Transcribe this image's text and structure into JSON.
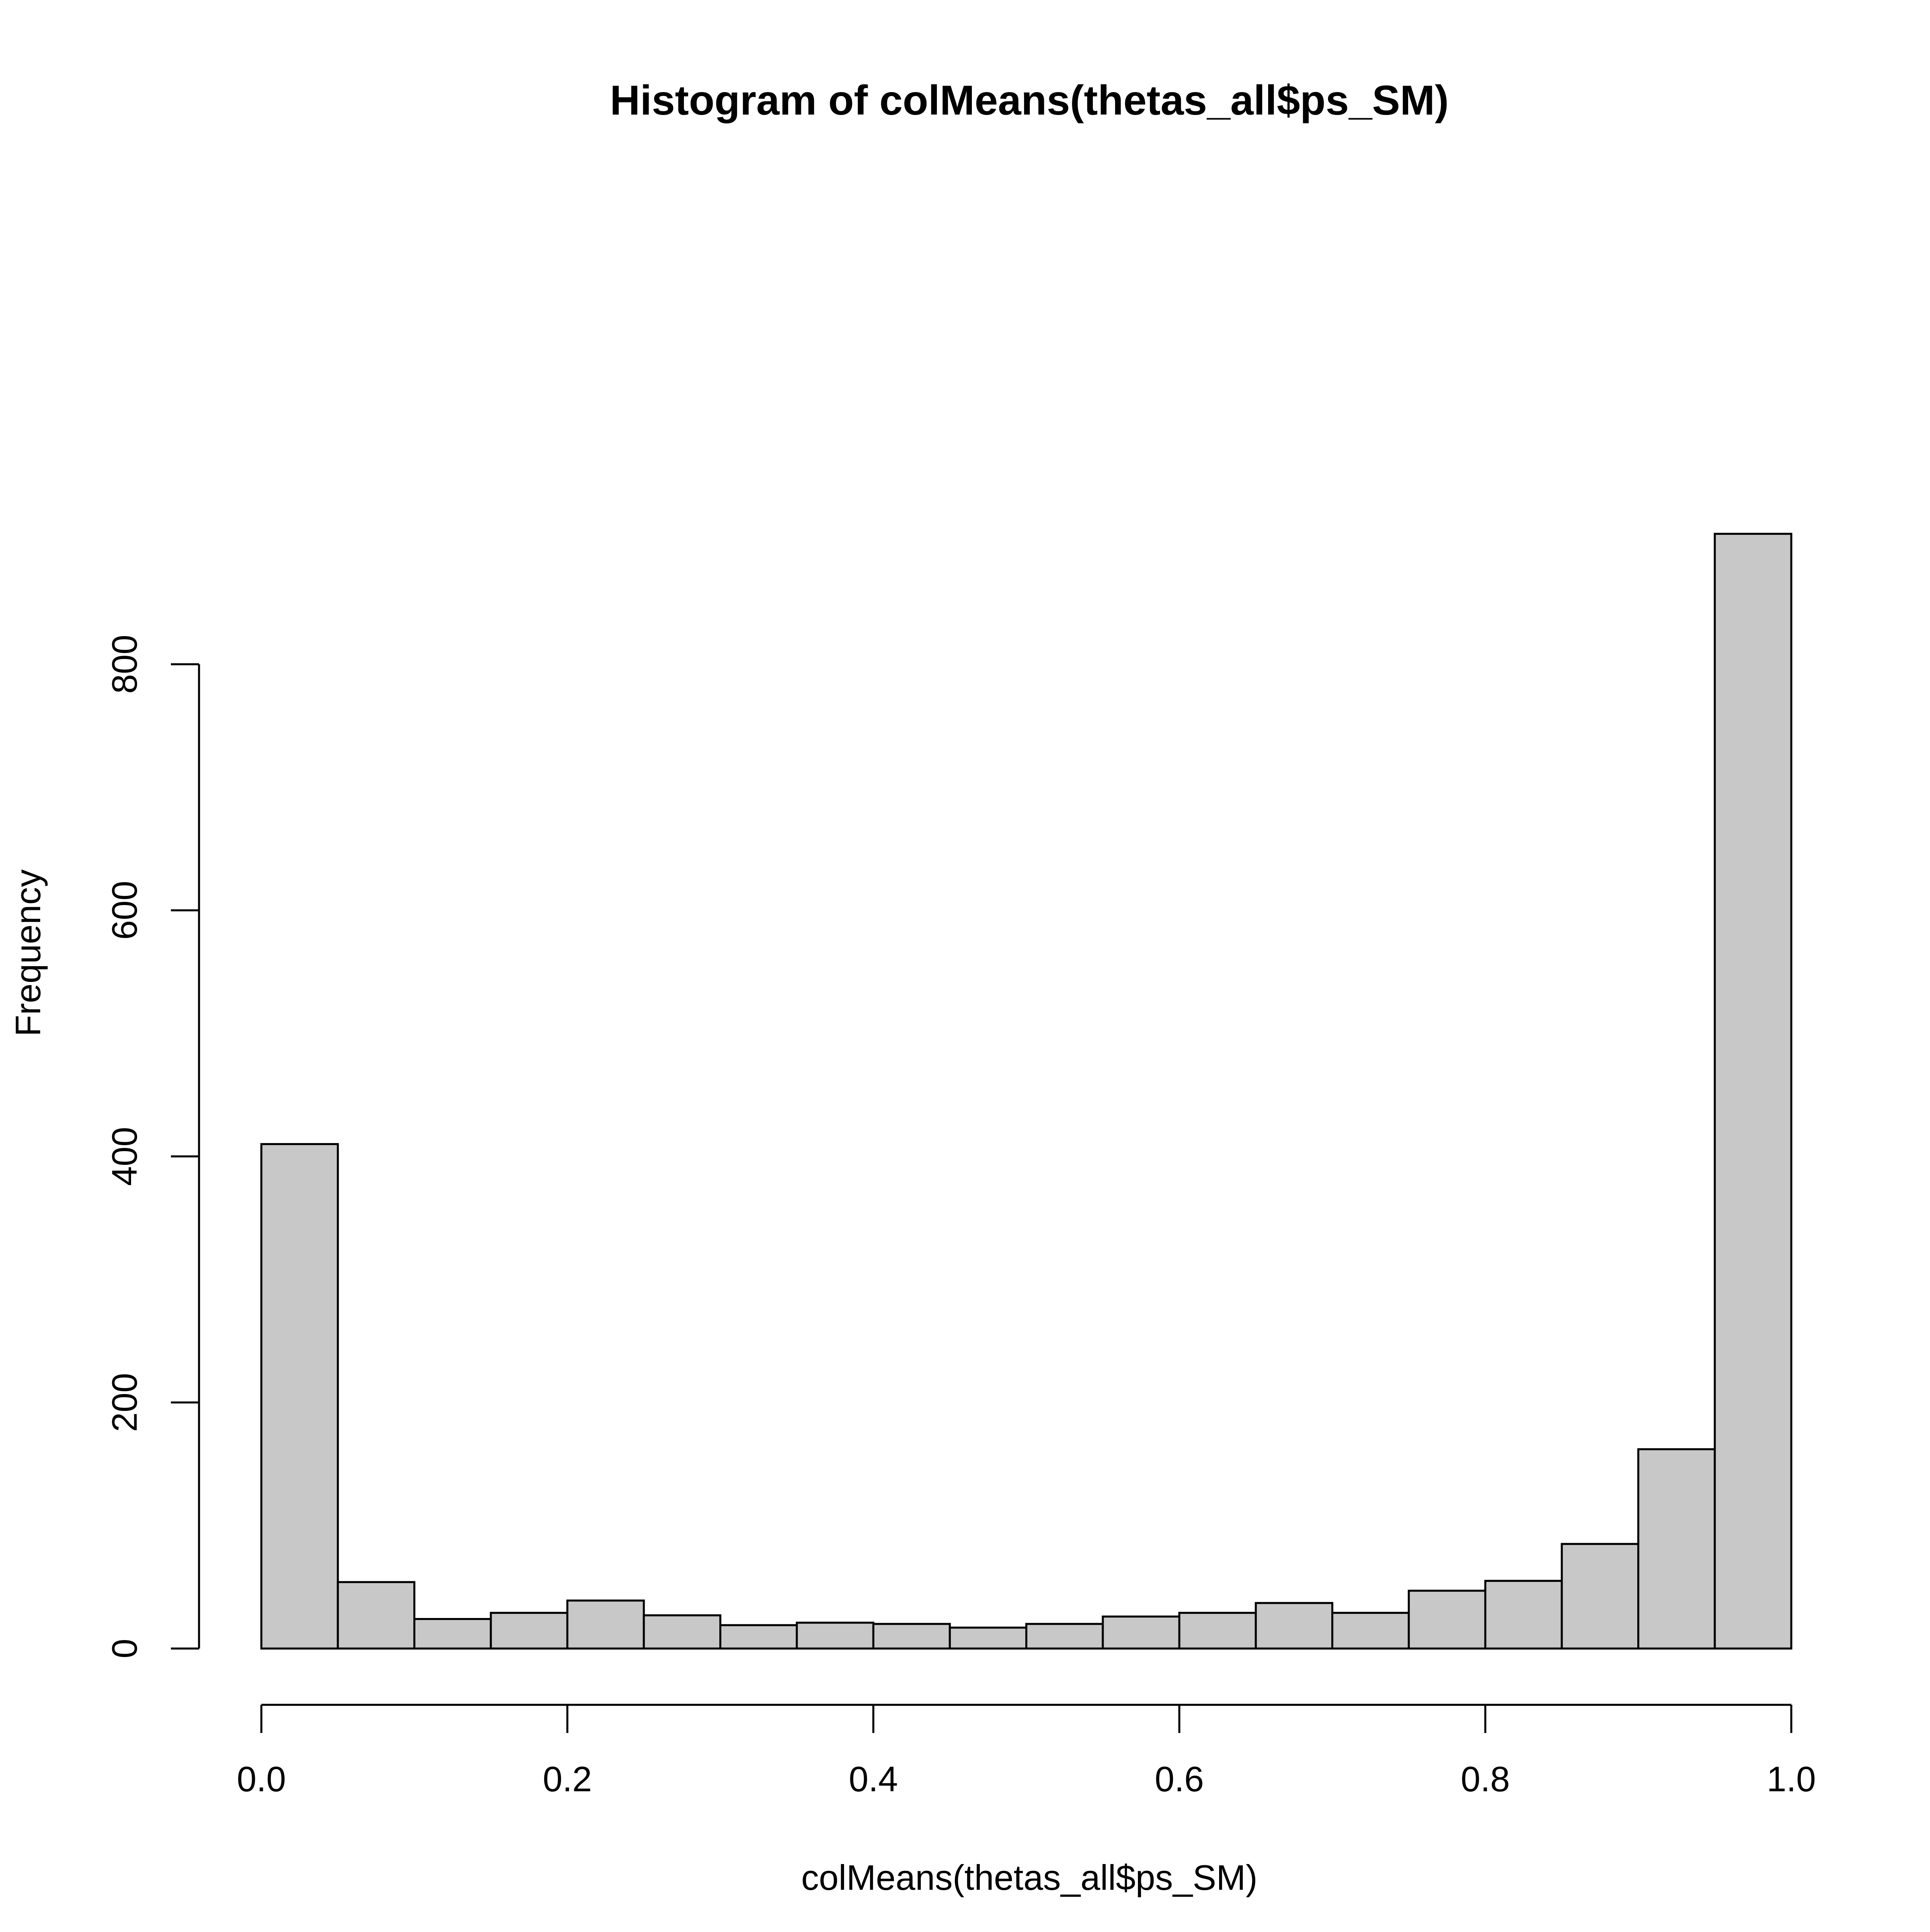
{
  "chart_data": {
    "type": "bar",
    "title": "Histogram of colMeans(thetas_all$ps_SM)",
    "xlabel": "colMeans(thetas_all$ps_SM)",
    "ylabel": "Frequency",
    "xlim": [
      0.0,
      1.0
    ],
    "ylim": [
      0,
      900
    ],
    "bin_width": 0.05,
    "bin_starts": [
      0.0,
      0.05,
      0.1,
      0.15,
      0.2,
      0.25,
      0.3,
      0.35,
      0.4,
      0.45,
      0.5,
      0.55,
      0.6,
      0.65,
      0.7,
      0.75,
      0.8,
      0.85,
      0.9,
      0.95
    ],
    "values": [
      410,
      54,
      24,
      29,
      39,
      27,
      19,
      21,
      20,
      17,
      20,
      26,
      29,
      37,
      29,
      47,
      55,
      85,
      162,
      906
    ],
    "x_ticks": [
      0.0,
      0.2,
      0.4,
      0.6,
      0.8,
      1.0
    ],
    "x_tick_labels": [
      "0.0",
      "0.2",
      "0.4",
      "0.6",
      "0.8",
      "1.0"
    ],
    "y_ticks": [
      0,
      200,
      400,
      600,
      800
    ],
    "y_tick_labels": [
      "0",
      "200",
      "400",
      "600",
      "800"
    ],
    "bar_fill": "#c8c8c8",
    "bar_stroke": "#000000",
    "grid": false,
    "legend": "none"
  }
}
